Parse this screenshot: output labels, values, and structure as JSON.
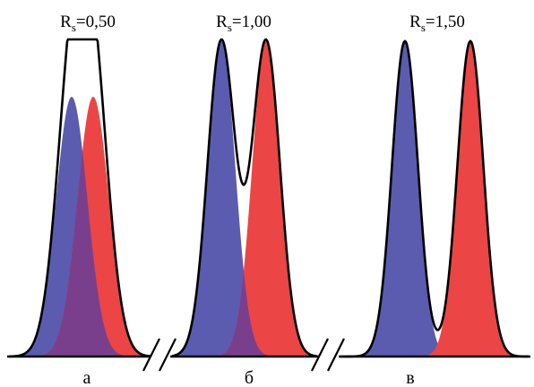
{
  "colors": {
    "peak1": "#5b5bb0",
    "peak2": "#ec4545",
    "overlap": "#7a3f8c",
    "envelope": "#000000",
    "baseline": "#000000",
    "background": "#ffffff"
  },
  "panels": [
    {
      "letter": "а",
      "rs_symbol": "R",
      "rs_sub": "s",
      "rs_value": "=0,50",
      "rs": 0.5
    },
    {
      "letter": "б",
      "rs_symbol": "R",
      "rs_sub": "s",
      "rs_value": "=1,00",
      "rs": 1.0
    },
    {
      "letter": "в",
      "rs_symbol": "R",
      "rs_sub": "s",
      "rs_value": "=1,50",
      "rs": 1.5
    }
  ]
}
